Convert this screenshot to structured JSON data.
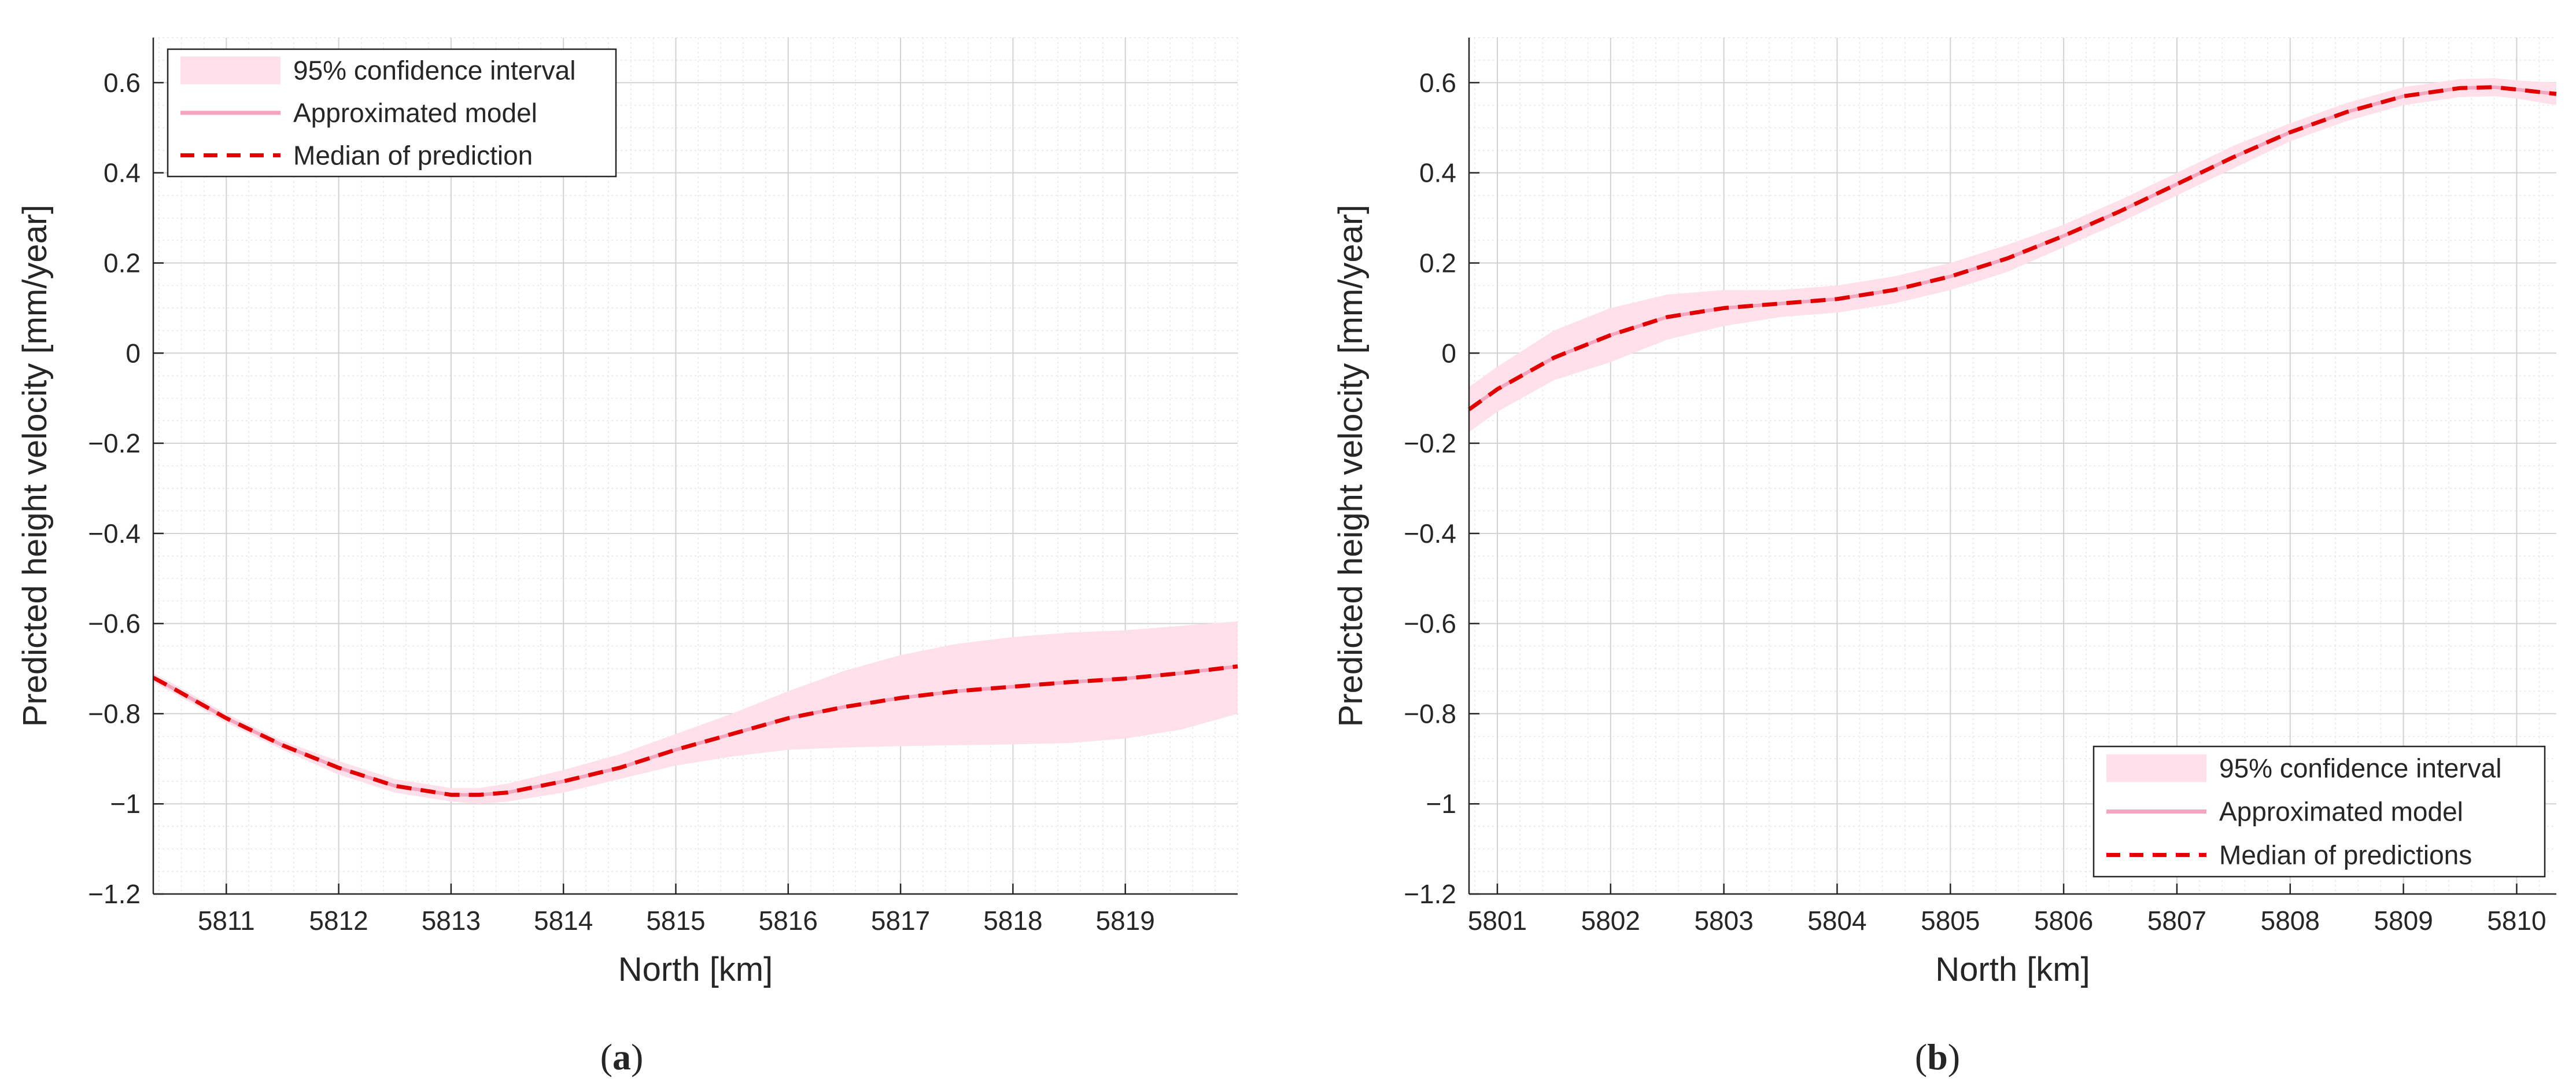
{
  "chart_data": [
    {
      "panel_label": "(a)",
      "panel_letter": "a",
      "type": "line",
      "xlabel": "North [km]",
      "ylabel": "Predicted height velocity [mm/year]",
      "xlim": [
        5810.35,
        5820.0
      ],
      "ylim": [
        -1.2,
        0.7
      ],
      "xticks": [
        5811,
        5812,
        5813,
        5814,
        5815,
        5816,
        5817,
        5818,
        5819
      ],
      "yticks": [
        -1.2,
        -1,
        -0.8,
        -0.6,
        -0.4,
        -0.2,
        0,
        0.2,
        0.4,
        0.6
      ],
      "ytick_labels": [
        "−1.2",
        "−1",
        "−0.8",
        "−0.6",
        "−0.4",
        "−0.2",
        "0",
        "0.2",
        "0.4",
        "0.6"
      ],
      "grid": true,
      "minor_grid": true,
      "legend_position": "top-left",
      "legend": [
        "95% confidence interval",
        "Approximated model",
        "Median of prediction"
      ],
      "x": [
        5810.35,
        5810.5,
        5811.0,
        5811.5,
        5812.0,
        5812.5,
        5813.0,
        5813.25,
        5813.5,
        5814.0,
        5814.5,
        5815.0,
        5815.5,
        5816.0,
        5816.5,
        5817.0,
        5817.5,
        5818.0,
        5818.5,
        5819.0,
        5819.5,
        5820.0
      ],
      "series": [
        {
          "values": [
            -0.72,
            -0.74,
            -0.81,
            -0.87,
            -0.92,
            -0.96,
            -0.98,
            -0.98,
            -0.975,
            -0.95,
            -0.92,
            -0.88,
            -0.845,
            -0.81,
            -0.785,
            -0.765,
            -0.75,
            -0.74,
            -0.73,
            -0.722,
            -0.71,
            -0.695
          ],
          "color": "#e00000",
          "style": "dashed"
        },
        {
          "values": [
            -0.72,
            -0.74,
            -0.81,
            -0.87,
            -0.92,
            -0.96,
            -0.98,
            -0.98,
            -0.975,
            -0.95,
            -0.92,
            -0.88,
            -0.845,
            -0.81,
            -0.785,
            -0.765,
            -0.75,
            -0.74,
            -0.73,
            -0.722,
            -0.71,
            -0.695
          ],
          "color": "#f4a6bf",
          "style": "solid"
        }
      ],
      "band_lower": [
        -0.73,
        -0.75,
        -0.82,
        -0.88,
        -0.935,
        -0.975,
        -0.995,
        -1.0,
        -0.995,
        -0.975,
        -0.945,
        -0.915,
        -0.895,
        -0.88,
        -0.875,
        -0.872,
        -0.87,
        -0.868,
        -0.865,
        -0.855,
        -0.835,
        -0.8
      ],
      "band_upper": [
        -0.71,
        -0.73,
        -0.8,
        -0.86,
        -0.905,
        -0.945,
        -0.965,
        -0.965,
        -0.955,
        -0.925,
        -0.89,
        -0.845,
        -0.8,
        -0.75,
        -0.705,
        -0.67,
        -0.645,
        -0.63,
        -0.62,
        -0.615,
        -0.605,
        -0.595
      ],
      "band_color": "#fde0e9"
    },
    {
      "panel_label": "(b)",
      "panel_letter": "b",
      "type": "line",
      "xlabel": "North [km]",
      "ylabel": "Predicted height velocity [mm/year]",
      "xlim": [
        5800.75,
        5810.35
      ],
      "ylim": [
        -1.2,
        0.7
      ],
      "xticks": [
        5801,
        5802,
        5803,
        5804,
        5805,
        5806,
        5807,
        5808,
        5809,
        5810
      ],
      "yticks": [
        -1.2,
        -1,
        -0.8,
        -0.6,
        -0.4,
        -0.2,
        0,
        0.2,
        0.4,
        0.6
      ],
      "ytick_labels": [
        "−1.2",
        "−1",
        "−0.8",
        "−0.6",
        "−0.4",
        "−0.2",
        "0",
        "0.2",
        "0.4",
        "0.6"
      ],
      "grid": true,
      "minor_grid": true,
      "legend_position": "bottom-right",
      "legend": [
        "95% confidence interval",
        "Approximated model",
        "Median of predictions"
      ],
      "x": [
        5800.75,
        5801.0,
        5801.5,
        5802.0,
        5802.5,
        5803.0,
        5803.5,
        5804.0,
        5804.5,
        5805.0,
        5805.5,
        5806.0,
        5806.5,
        5807.0,
        5807.5,
        5808.0,
        5808.5,
        5809.0,
        5809.5,
        5809.8,
        5810.0,
        5810.35
      ],
      "series": [
        {
          "values": [
            -0.125,
            -0.08,
            -0.01,
            0.04,
            0.08,
            0.1,
            0.11,
            0.12,
            0.14,
            0.17,
            0.21,
            0.26,
            0.315,
            0.375,
            0.435,
            0.49,
            0.535,
            0.57,
            0.588,
            0.59,
            0.585,
            0.575
          ],
          "color": "#e00000",
          "style": "dashed"
        },
        {
          "values": [
            -0.125,
            -0.08,
            -0.01,
            0.04,
            0.08,
            0.1,
            0.11,
            0.12,
            0.14,
            0.17,
            0.21,
            0.26,
            0.315,
            0.375,
            0.435,
            0.49,
            0.535,
            0.57,
            0.588,
            0.59,
            0.585,
            0.575
          ],
          "color": "#f4a6bf",
          "style": "solid"
        }
      ],
      "band_lower": [
        -0.175,
        -0.13,
        -0.06,
        -0.02,
        0.03,
        0.06,
        0.08,
        0.09,
        0.11,
        0.14,
        0.18,
        0.235,
        0.29,
        0.35,
        0.41,
        0.47,
        0.515,
        0.55,
        0.568,
        0.57,
        0.565,
        0.55
      ],
      "band_upper": [
        -0.075,
        -0.03,
        0.05,
        0.1,
        0.13,
        0.14,
        0.14,
        0.15,
        0.17,
        0.2,
        0.24,
        0.285,
        0.34,
        0.4,
        0.46,
        0.51,
        0.555,
        0.59,
        0.608,
        0.61,
        0.605,
        0.6
      ],
      "band_color": "#fde0e9"
    }
  ]
}
